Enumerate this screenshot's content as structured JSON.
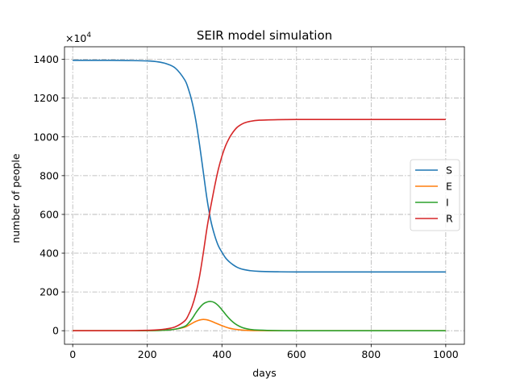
{
  "chart_data": {
    "type": "line",
    "title": "SEIR model simulation",
    "xlabel": "days",
    "ylabel": "number of people",
    "y_multiplier_prefix": "×10",
    "y_multiplier_exponent": "4",
    "xlim": [
      -22,
      1050
    ],
    "ylim": [
      -70,
      1465
    ],
    "xticks": [
      0,
      200,
      400,
      600,
      800,
      1000
    ],
    "yticks": [
      0,
      200,
      400,
      600,
      800,
      1000,
      1200,
      1400
    ],
    "grid": true,
    "legend_position": "right",
    "x": [
      0,
      50,
      100,
      150,
      200,
      225,
      250,
      275,
      300,
      310,
      320,
      330,
      340,
      350,
      360,
      370,
      380,
      390,
      400,
      410,
      420,
      430,
      440,
      450,
      460,
      475,
      500,
      550,
      600,
      700,
      800,
      900,
      1000
    ],
    "series": [
      {
        "name": "S",
        "color": "#1f77b4",
        "values": [
          1395,
          1395,
          1395,
          1394,
          1392,
          1388,
          1378,
          1355,
          1295,
          1248,
          1180,
          1085,
          960,
          820,
          680,
          570,
          495,
          440,
          405,
          375,
          355,
          340,
          328,
          320,
          315,
          310,
          306,
          304,
          303,
          303,
          303,
          303,
          303
        ]
      },
      {
        "name": "E",
        "color": "#ff7f0e",
        "values": [
          0,
          0,
          0,
          0,
          0.5,
          1,
          3,
          8,
          18,
          27,
          38,
          48,
          55,
          58,
          56,
          50,
          42,
          34,
          26,
          19,
          13,
          9,
          6,
          4,
          2.5,
          1,
          0.4,
          0,
          0,
          0,
          0,
          0,
          0
        ]
      },
      {
        "name": "I",
        "color": "#2ca02c",
        "values": [
          0,
          0,
          0,
          0,
          0.5,
          1,
          3,
          8,
          22,
          38,
          62,
          92,
          118,
          138,
          148,
          151,
          145,
          130,
          108,
          84,
          62,
          44,
          30,
          20,
          13,
          7,
          3,
          0.5,
          0,
          0,
          0,
          0,
          0
        ]
      },
      {
        "name": "R",
        "color": "#d62728",
        "values": [
          0,
          0,
          0,
          0,
          2,
          4,
          9,
          20,
          50,
          80,
          125,
          190,
          280,
          400,
          530,
          640,
          740,
          830,
          900,
          955,
          995,
          1025,
          1048,
          1062,
          1072,
          1080,
          1086,
          1089,
          1090,
          1090,
          1090,
          1090,
          1090
        ]
      }
    ]
  }
}
